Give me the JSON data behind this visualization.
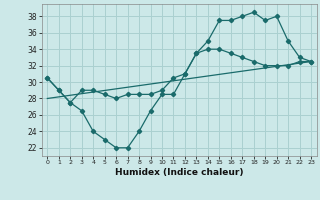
{
  "title": "",
  "xlabel": "Humidex (Indice chaleur)",
  "xlim": [
    -0.5,
    23.5
  ],
  "ylim": [
    21.0,
    39.5
  ],
  "yticks": [
    22,
    24,
    26,
    28,
    30,
    32,
    34,
    36,
    38
  ],
  "xticks": [
    0,
    1,
    2,
    3,
    4,
    5,
    6,
    7,
    8,
    9,
    10,
    11,
    12,
    13,
    14,
    15,
    16,
    17,
    18,
    19,
    20,
    21,
    22,
    23
  ],
  "bg_color": "#cce8e8",
  "grid_color": "#aad0d0",
  "line_color": "#1a6b6b",
  "line1_x": [
    0,
    1,
    2,
    3,
    4,
    5,
    6,
    7,
    8,
    9,
    10,
    11,
    12,
    13,
    14,
    15,
    16,
    17,
    18,
    19,
    20,
    21,
    22,
    23
  ],
  "line1_y": [
    30.5,
    29.0,
    27.5,
    26.5,
    24.0,
    23.0,
    22.0,
    22.0,
    24.0,
    26.5,
    28.5,
    28.5,
    31.0,
    33.5,
    35.0,
    37.5,
    37.5,
    38.0,
    38.5,
    37.5,
    38.0,
    35.0,
    33.0,
    32.5
  ],
  "line2_x": [
    0,
    1,
    2,
    3,
    4,
    5,
    6,
    7,
    8,
    9,
    10,
    11,
    12,
    13,
    14,
    15,
    16,
    17,
    18,
    19,
    20,
    21,
    22,
    23
  ],
  "line2_y": [
    30.5,
    29.0,
    27.5,
    29.0,
    29.0,
    28.5,
    28.0,
    28.5,
    28.5,
    28.5,
    29.0,
    30.5,
    31.0,
    33.5,
    34.0,
    34.0,
    33.5,
    33.0,
    32.5,
    32.0,
    32.0,
    32.0,
    32.5,
    32.5
  ],
  "line3_x": [
    0,
    23
  ],
  "line3_y": [
    28.0,
    32.5
  ]
}
